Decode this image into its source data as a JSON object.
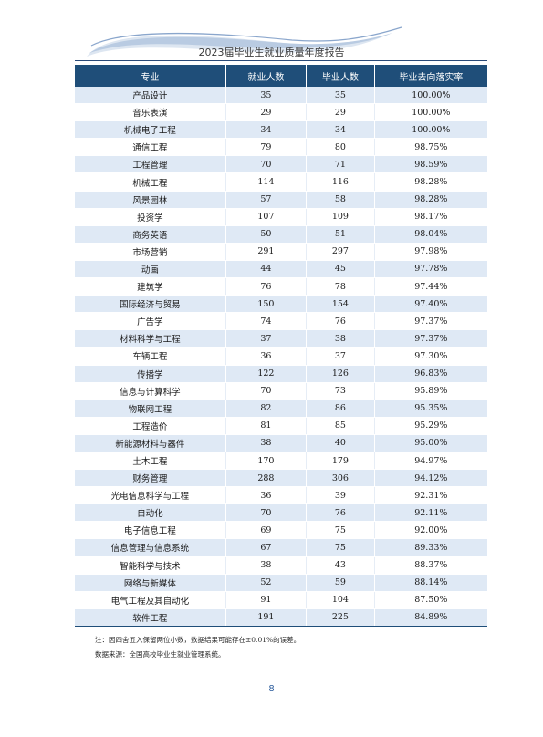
{
  "header": {
    "title": "2023届毕业生就业质量年度报告"
  },
  "table": {
    "headers": [
      "专业",
      "就业人数",
      "毕业人数",
      "毕业去向落实率"
    ],
    "rows": [
      [
        "产品设计",
        "35",
        "35",
        "100.00%"
      ],
      [
        "音乐表演",
        "29",
        "29",
        "100.00%"
      ],
      [
        "机械电子工程",
        "34",
        "34",
        "100.00%"
      ],
      [
        "通信工程",
        "79",
        "80",
        "98.75%"
      ],
      [
        "工程管理",
        "70",
        "71",
        "98.59%"
      ],
      [
        "机械工程",
        "114",
        "116",
        "98.28%"
      ],
      [
        "风景园林",
        "57",
        "58",
        "98.28%"
      ],
      [
        "投资学",
        "107",
        "109",
        "98.17%"
      ],
      [
        "商务英语",
        "50",
        "51",
        "98.04%"
      ],
      [
        "市场营销",
        "291",
        "297",
        "97.98%"
      ],
      [
        "动画",
        "44",
        "45",
        "97.78%"
      ],
      [
        "建筑学",
        "76",
        "78",
        "97.44%"
      ],
      [
        "国际经济与贸易",
        "150",
        "154",
        "97.40%"
      ],
      [
        "广告学",
        "74",
        "76",
        "97.37%"
      ],
      [
        "材料科学与工程",
        "37",
        "38",
        "97.37%"
      ],
      [
        "车辆工程",
        "36",
        "37",
        "97.30%"
      ],
      [
        "传播学",
        "122",
        "126",
        "96.83%"
      ],
      [
        "信息与计算科学",
        "70",
        "73",
        "95.89%"
      ],
      [
        "物联网工程",
        "82",
        "86",
        "95.35%"
      ],
      [
        "工程造价",
        "81",
        "85",
        "95.29%"
      ],
      [
        "新能源材料与器件",
        "38",
        "40",
        "95.00%"
      ],
      [
        "土木工程",
        "170",
        "179",
        "94.97%"
      ],
      [
        "财务管理",
        "288",
        "306",
        "94.12%"
      ],
      [
        "光电信息科学与工程",
        "36",
        "39",
        "92.31%"
      ],
      [
        "自动化",
        "70",
        "76",
        "92.11%"
      ],
      [
        "电子信息工程",
        "69",
        "75",
        "92.00%"
      ],
      [
        "信息管理与信息系统",
        "67",
        "75",
        "89.33%"
      ],
      [
        "智能科学与技术",
        "38",
        "43",
        "88.37%"
      ],
      [
        "网络与新媒体",
        "52",
        "59",
        "88.14%"
      ],
      [
        "电气工程及其自动化",
        "91",
        "104",
        "87.50%"
      ],
      [
        "软件工程",
        "191",
        "225",
        "84.89%"
      ]
    ]
  },
  "notes": {
    "note1": "注：因四舍五入保留两位小数，数据结果可能存在±0.01%的误差。",
    "note2": "数据来源：全国高校毕业生就业管理系统。"
  },
  "footer": {
    "page_number": "8"
  },
  "colors": {
    "header_fill": "#1f4e79",
    "stripe_fill": "#dfe9f5",
    "page_number": "#2f5f9e"
  }
}
